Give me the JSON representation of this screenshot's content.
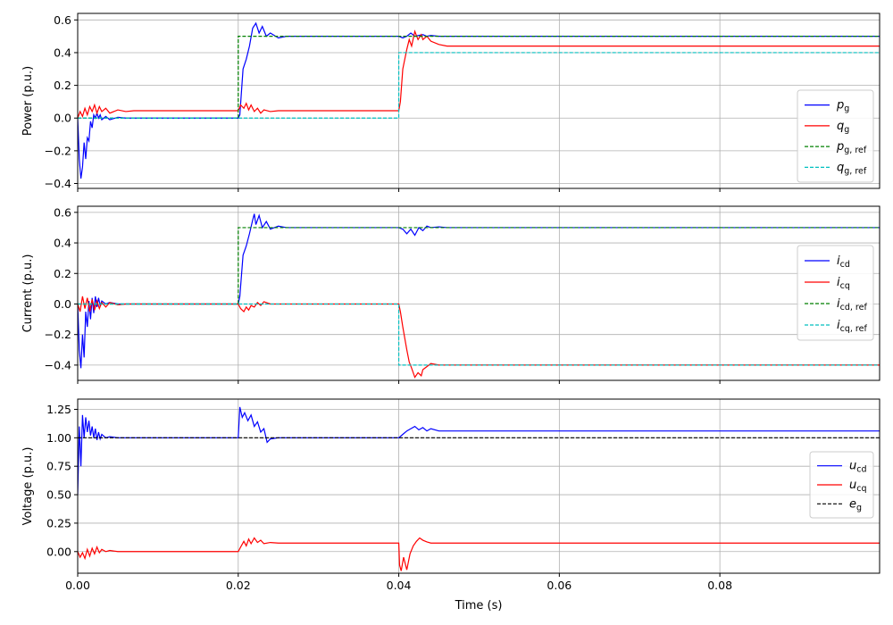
{
  "x_axis": {
    "label": "Time (s)",
    "ticks": [
      0,
      0.02,
      0.04,
      0.06,
      0.08
    ],
    "tick_labels": [
      "0.00",
      "0.02",
      "0.04",
      "0.06",
      "0.08"
    ]
  },
  "chart_data": [
    {
      "type": "line",
      "ylabel": "Power (p.u.)",
      "xlim": [
        0,
        0.0999
      ],
      "ylim": [
        -0.43,
        0.64
      ],
      "yticks": [
        -0.4,
        -0.2,
        0.0,
        0.2,
        0.4,
        0.6
      ],
      "ytick_labels": [
        "−0.4",
        "−0.2",
        "0.0",
        "0.2",
        "0.4",
        "0.6"
      ],
      "grid": true,
      "legend": "lower-right",
      "series": [
        {
          "key": "pg",
          "name": "p",
          "sub": "g",
          "color": "#0000ff",
          "dash": "",
          "x": [
            0,
            0.0002,
            0.0004,
            0.0006,
            0.0008,
            0.001,
            0.0012,
            0.0014,
            0.0016,
            0.0018,
            0.002,
            0.0022,
            0.0024,
            0.0026,
            0.0028,
            0.003,
            0.0035,
            0.004,
            0.005,
            0.006,
            0.01,
            0.02,
            0.0202,
            0.0206,
            0.021,
            0.0214,
            0.0218,
            0.0222,
            0.0226,
            0.023,
            0.0235,
            0.024,
            0.025,
            0.026,
            0.03,
            0.04,
            0.0405,
            0.041,
            0.0415,
            0.042,
            0.043,
            0.0435,
            0.044,
            0.045,
            0.046,
            0.0999
          ],
          "y": [
            0.0,
            -0.25,
            -0.37,
            -0.3,
            -0.15,
            -0.25,
            -0.12,
            -0.14,
            -0.02,
            -0.06,
            0.02,
            0.0,
            0.03,
            0.0,
            0.02,
            -0.01,
            0.01,
            -0.01,
            0.005,
            0.0,
            0.0,
            0.0,
            0.02,
            0.3,
            0.36,
            0.44,
            0.55,
            0.58,
            0.52,
            0.56,
            0.5,
            0.52,
            0.49,
            0.5,
            0.5,
            0.5,
            0.49,
            0.5,
            0.52,
            0.5,
            0.51,
            0.5,
            0.505,
            0.5,
            0.5,
            0.5
          ]
        },
        {
          "key": "qg",
          "name": "q",
          "sub": "g",
          "color": "#ff0000",
          "dash": "",
          "x": [
            0,
            0.0003,
            0.0006,
            0.0009,
            0.0012,
            0.0015,
            0.0018,
            0.0021,
            0.0024,
            0.0027,
            0.003,
            0.0035,
            0.004,
            0.005,
            0.006,
            0.007,
            0.01,
            0.02,
            0.0203,
            0.0207,
            0.021,
            0.0213,
            0.0216,
            0.022,
            0.0224,
            0.0228,
            0.0232,
            0.024,
            0.025,
            0.03,
            0.04,
            0.0402,
            0.0405,
            0.041,
            0.0413,
            0.0416,
            0.042,
            0.0424,
            0.0428,
            0.043,
            0.0435,
            0.044,
            0.045,
            0.046,
            0.047,
            0.06,
            0.0999
          ],
          "y": [
            0.0,
            0.04,
            0.01,
            0.06,
            0.02,
            0.07,
            0.04,
            0.08,
            0.03,
            0.07,
            0.04,
            0.06,
            0.03,
            0.05,
            0.04,
            0.045,
            0.045,
            0.045,
            0.08,
            0.06,
            0.09,
            0.05,
            0.08,
            0.04,
            0.06,
            0.03,
            0.05,
            0.04,
            0.045,
            0.045,
            0.045,
            0.1,
            0.3,
            0.42,
            0.48,
            0.44,
            0.53,
            0.48,
            0.51,
            0.48,
            0.5,
            0.47,
            0.45,
            0.44,
            0.44,
            0.44,
            0.44
          ]
        },
        {
          "key": "pgref",
          "name": "p",
          "sub": "g, ref",
          "color": "#008000",
          "dash": "4,2",
          "x": [
            0,
            0.02,
            0.02,
            0.0999
          ],
          "y": [
            0,
            0,
            0.5,
            0.5
          ]
        },
        {
          "key": "qgref",
          "name": "q",
          "sub": "g, ref",
          "color": "#00bfbf",
          "dash": "4,2",
          "x": [
            0,
            0.04,
            0.04,
            0.0999
          ],
          "y": [
            0,
            0,
            0.4,
            0.4
          ]
        }
      ]
    },
    {
      "type": "line",
      "ylabel": "Current (p.u.)",
      "xlim": [
        0,
        0.0999
      ],
      "ylim": [
        -0.5,
        0.64
      ],
      "yticks": [
        -0.4,
        -0.2,
        0.0,
        0.2,
        0.4,
        0.6
      ],
      "ytick_labels": [
        "−0.4",
        "−0.2",
        "0.0",
        "0.2",
        "0.4",
        "0.6"
      ],
      "grid": true,
      "legend": "right",
      "series": [
        {
          "key": "icd",
          "name": "i",
          "sub": "cd",
          "color": "#0000ff",
          "dash": "",
          "x": [
            0,
            0.0002,
            0.0004,
            0.0006,
            0.0008,
            0.001,
            0.0012,
            0.0014,
            0.0016,
            0.0018,
            0.002,
            0.0022,
            0.0024,
            0.0026,
            0.0028,
            0.003,
            0.0035,
            0.004,
            0.005,
            0.006,
            0.01,
            0.02,
            0.0202,
            0.0206,
            0.021,
            0.0214,
            0.0218,
            0.022,
            0.0222,
            0.0226,
            0.023,
            0.0235,
            0.024,
            0.025,
            0.026,
            0.03,
            0.04,
            0.0405,
            0.041,
            0.0415,
            0.042,
            0.0425,
            0.043,
            0.0435,
            0.044,
            0.045,
            0.046,
            0.0999
          ],
          "y": [
            0.0,
            -0.3,
            -0.42,
            -0.2,
            -0.35,
            -0.05,
            -0.15,
            0.02,
            -0.1,
            0.04,
            -0.06,
            0.05,
            -0.02,
            0.04,
            -0.01,
            0.02,
            0.0,
            0.01,
            0.0,
            0.0,
            0.0,
            0.0,
            0.05,
            0.32,
            0.38,
            0.46,
            0.55,
            0.59,
            0.52,
            0.58,
            0.5,
            0.54,
            0.49,
            0.51,
            0.5,
            0.5,
            0.5,
            0.49,
            0.46,
            0.49,
            0.45,
            0.5,
            0.48,
            0.51,
            0.5,
            0.505,
            0.5,
            0.5
          ]
        },
        {
          "key": "icq",
          "name": "i",
          "sub": "cq",
          "color": "#ff0000",
          "dash": "",
          "x": [
            0,
            0.0003,
            0.0006,
            0.0009,
            0.0012,
            0.0015,
            0.0018,
            0.0021,
            0.0024,
            0.0027,
            0.003,
            0.0035,
            0.004,
            0.005,
            0.006,
            0.01,
            0.02,
            0.0203,
            0.0207,
            0.021,
            0.0213,
            0.0216,
            0.022,
            0.0224,
            0.0228,
            0.0232,
            0.024,
            0.025,
            0.03,
            0.04,
            0.0402,
            0.0405,
            0.041,
            0.0413,
            0.0416,
            0.042,
            0.0424,
            0.0428,
            0.043,
            0.0435,
            0.044,
            0.045,
            0.046,
            0.0999
          ],
          "y": [
            0.0,
            -0.05,
            0.05,
            -0.03,
            0.04,
            -0.05,
            0.03,
            -0.04,
            0.02,
            -0.03,
            0.01,
            -0.02,
            0.01,
            -0.005,
            0.0,
            0.0,
            0.0,
            -0.03,
            -0.05,
            -0.02,
            -0.04,
            -0.01,
            -0.02,
            0.01,
            -0.01,
            0.015,
            0.0,
            0.0,
            0.0,
            0.0,
            -0.05,
            -0.15,
            -0.3,
            -0.38,
            -0.42,
            -0.48,
            -0.45,
            -0.47,
            -0.43,
            -0.41,
            -0.39,
            -0.4,
            -0.4,
            -0.4
          ]
        },
        {
          "key": "icdref",
          "name": "i",
          "sub": "cd, ref",
          "color": "#008000",
          "dash": "4,2",
          "x": [
            0,
            0.02,
            0.02,
            0.0999
          ],
          "y": [
            0,
            0,
            0.5,
            0.5
          ]
        },
        {
          "key": "icqref",
          "name": "i",
          "sub": "cq, ref",
          "color": "#00bfbf",
          "dash": "4,2",
          "x": [
            0,
            0.04,
            0.04,
            0.0999
          ],
          "y": [
            0,
            0,
            -0.4,
            -0.4
          ]
        }
      ]
    },
    {
      "type": "line",
      "ylabel": "Voltage (p.u.)",
      "xlim": [
        0,
        0.0999
      ],
      "ylim": [
        -0.19,
        1.34
      ],
      "yticks": [
        0.0,
        0.25,
        0.5,
        0.75,
        1.0,
        1.25
      ],
      "ytick_labels": [
        "0.00",
        "0.25",
        "0.50",
        "0.75",
        "1.00",
        "1.25"
      ],
      "grid": true,
      "legend": "right",
      "series": [
        {
          "key": "ucd",
          "name": "u",
          "sub": "cd",
          "color": "#0000ff",
          "dash": "",
          "x": [
            0,
            0.0002,
            0.0004,
            0.0006,
            0.0008,
            0.001,
            0.0012,
            0.0014,
            0.0016,
            0.0018,
            0.002,
            0.0022,
            0.0024,
            0.0026,
            0.0028,
            0.003,
            0.0035,
            0.004,
            0.005,
            0.006,
            0.01,
            0.02,
            0.0202,
            0.0205,
            0.0208,
            0.0212,
            0.0216,
            0.022,
            0.0224,
            0.0228,
            0.0232,
            0.0236,
            0.024,
            0.025,
            0.026,
            0.03,
            0.04,
            0.0405,
            0.041,
            0.0415,
            0.042,
            0.0425,
            0.043,
            0.0435,
            0.044,
            0.045,
            0.0999
          ],
          "y": [
            0.5,
            1.1,
            0.75,
            1.2,
            1.0,
            1.18,
            1.05,
            1.15,
            1.02,
            1.1,
            1.0,
            1.08,
            0.98,
            1.05,
            0.99,
            1.03,
            1.0,
            1.01,
            1.0,
            1.0,
            1.0,
            1.0,
            1.27,
            1.18,
            1.22,
            1.15,
            1.2,
            1.1,
            1.14,
            1.05,
            1.08,
            0.96,
            0.99,
            1.0,
            1.0,
            1.0,
            1.0,
            1.03,
            1.06,
            1.08,
            1.1,
            1.07,
            1.09,
            1.06,
            1.08,
            1.06,
            1.06
          ]
        },
        {
          "key": "ucq",
          "name": "u",
          "sub": "cq",
          "color": "#ff0000",
          "dash": "",
          "x": [
            0,
            0.0003,
            0.0006,
            0.0009,
            0.0012,
            0.0015,
            0.0018,
            0.0021,
            0.0024,
            0.0027,
            0.003,
            0.0035,
            0.004,
            0.005,
            0.006,
            0.01,
            0.02,
            0.0203,
            0.0207,
            0.021,
            0.0213,
            0.0216,
            0.022,
            0.0224,
            0.0228,
            0.0232,
            0.024,
            0.025,
            0.03,
            0.04,
            0.0401,
            0.0403,
            0.0406,
            0.041,
            0.0414,
            0.0418,
            0.0422,
            0.0426,
            0.043,
            0.0435,
            0.044,
            0.045,
            0.0999
          ],
          "y": [
            0.0,
            -0.05,
            -0.01,
            -0.06,
            0.02,
            -0.04,
            0.03,
            -0.02,
            0.04,
            -0.01,
            0.02,
            0.0,
            0.01,
            0.0,
            0.0,
            0.0,
            0.0,
            0.04,
            0.09,
            0.05,
            0.11,
            0.07,
            0.12,
            0.08,
            0.1,
            0.07,
            0.08,
            0.075,
            0.075,
            0.075,
            -0.12,
            -0.17,
            -0.05,
            -0.16,
            -0.02,
            0.05,
            0.09,
            0.12,
            0.1,
            0.085,
            0.075,
            0.075,
            0.075
          ]
        },
        {
          "key": "eg",
          "name": "e",
          "sub": "g",
          "color": "#000000",
          "dash": "4,2",
          "x": [
            0,
            0.0999
          ],
          "y": [
            1.0,
            1.0
          ]
        }
      ]
    }
  ]
}
